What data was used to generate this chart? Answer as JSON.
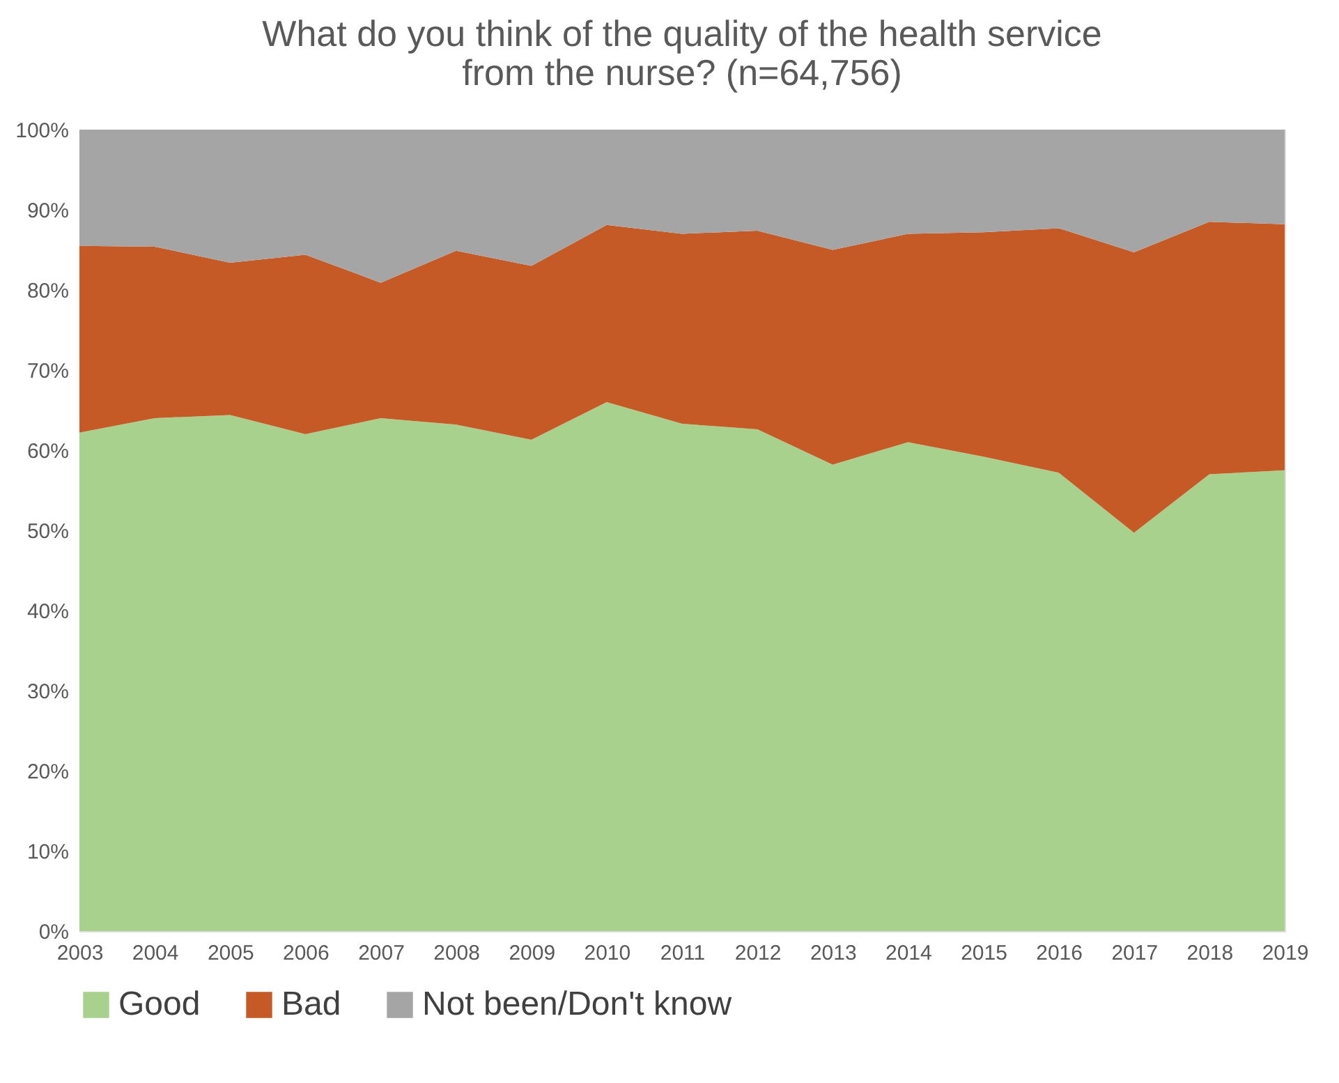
{
  "chart_data": {
    "type": "area",
    "stacked": true,
    "title": [
      "What do you think of the quality of the health service",
      "from the nurse? (n=64,756)"
    ],
    "categories": [
      "2003",
      "2004",
      "2005",
      "2006",
      "2007",
      "2008",
      "2009",
      "2010",
      "2011",
      "2012",
      "2013",
      "2014",
      "2015",
      "2016",
      "2017",
      "2018",
      "2019"
    ],
    "series": [
      {
        "name": "Good",
        "color": "#a9d18e",
        "values": [
          62.2,
          64.0,
          64.4,
          62.0,
          64.0,
          63.2,
          61.3,
          66.0,
          63.3,
          62.6,
          58.2,
          61.0,
          59.2,
          57.2,
          49.7,
          57.0,
          57.5
        ]
      },
      {
        "name": "Bad",
        "color": "#c55a26",
        "values": [
          23.3,
          21.4,
          19.0,
          22.4,
          16.9,
          21.7,
          21.7,
          22.1,
          23.7,
          24.8,
          26.8,
          26.0,
          28.0,
          30.5,
          35.0,
          31.5,
          30.7
        ]
      },
      {
        "name": "Not been/Don't know",
        "color": "#a5a5a5",
        "values": [
          14.5,
          14.6,
          16.6,
          15.6,
          19.1,
          15.1,
          17.0,
          11.9,
          13.0,
          12.6,
          15.0,
          13.0,
          12.8,
          12.3,
          15.3,
          11.5,
          11.8
        ]
      }
    ],
    "ylim": [
      0,
      100
    ],
    "yticks": [
      {
        "value": 0,
        "label": "0%"
      },
      {
        "value": 10,
        "label": "10%"
      },
      {
        "value": 20,
        "label": "20%"
      },
      {
        "value": 30,
        "label": "30%"
      },
      {
        "value": 40,
        "label": "40%"
      },
      {
        "value": 50,
        "label": "50%"
      },
      {
        "value": 60,
        "label": "60%"
      },
      {
        "value": 70,
        "label": "70%"
      },
      {
        "value": 80,
        "label": "80%"
      },
      {
        "value": 90,
        "label": "90%"
      },
      {
        "value": 100,
        "label": "100%"
      }
    ],
    "grid": false,
    "legend": "bottom"
  }
}
